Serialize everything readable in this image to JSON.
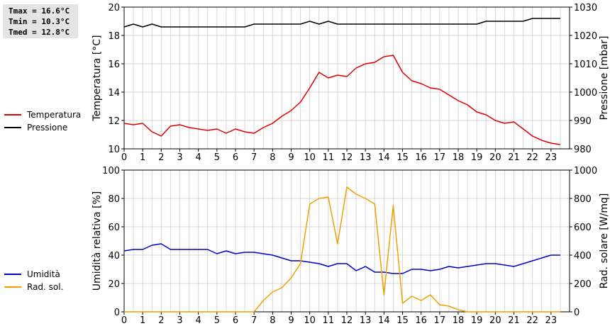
{
  "stats": {
    "tmax": "Tmax = 16.6°C",
    "tmin": "Tmin = 10.3°C",
    "tmed": "Tmed = 12.8°C"
  },
  "chart_data": [
    {
      "type": "line",
      "ylabel": "Temperatura [°C]",
      "y2label": "Pressione [mbar]",
      "xlim": [
        0,
        24
      ],
      "xticks": [
        0,
        1,
        2,
        3,
        4,
        5,
        6,
        7,
        8,
        9,
        10,
        11,
        12,
        13,
        14,
        15,
        16,
        17,
        18,
        19,
        20,
        21,
        22,
        23
      ],
      "ylim": [
        10,
        20
      ],
      "yticks": [
        10,
        12,
        14,
        16,
        18,
        20
      ],
      "y2lim": [
        980,
        1030
      ],
      "y2ticks": [
        980,
        990,
        1000,
        1010,
        1020,
        1030
      ],
      "grid": true,
      "legend_position": "left",
      "series": [
        {
          "name": "Temperatura",
          "color": "#dd0000",
          "axis": "left",
          "x": [
            0,
            0.5,
            1,
            1.5,
            2,
            2.5,
            3,
            3.5,
            4,
            4.5,
            5,
            5.5,
            6,
            6.5,
            7,
            7.5,
            8,
            8.5,
            9,
            9.5,
            10,
            10.5,
            11,
            11.5,
            12,
            12.5,
            13,
            13.5,
            14,
            14.5,
            15,
            15.5,
            16,
            16.5,
            17,
            17.5,
            18,
            18.5,
            19,
            19.5,
            20,
            20.5,
            21,
            21.5,
            22,
            22.5,
            23,
            23.5
          ],
          "values": [
            11.8,
            11.7,
            11.8,
            11.2,
            10.9,
            11.6,
            11.7,
            11.5,
            11.4,
            11.3,
            11.4,
            11.1,
            11.4,
            11.2,
            11.1,
            11.5,
            11.8,
            12.3,
            12.7,
            13.3,
            14.3,
            15.4,
            15.0,
            15.2,
            15.1,
            15.7,
            16.0,
            16.1,
            16.5,
            16.6,
            15.4,
            14.8,
            14.6,
            14.3,
            14.2,
            13.8,
            13.4,
            13.1,
            12.6,
            12.4,
            12.0,
            11.8,
            11.9,
            11.4,
            10.9,
            10.6,
            10.4,
            10.3
          ]
        },
        {
          "name": "Pressione",
          "color": "#000000",
          "axis": "right",
          "x": [
            0,
            0.5,
            1,
            1.5,
            2,
            2.5,
            3,
            3.5,
            4,
            4.5,
            5,
            5.5,
            6,
            6.5,
            7,
            7.5,
            8,
            8.5,
            9,
            9.5,
            10,
            10.5,
            11,
            11.5,
            12,
            12.5,
            13,
            13.5,
            14,
            14.5,
            15,
            15.5,
            16,
            16.5,
            17,
            17.5,
            18,
            18.5,
            19,
            19.5,
            20,
            20.5,
            21,
            21.5,
            22,
            22.5,
            23,
            23.5
          ],
          "values": [
            1023,
            1024,
            1023,
            1024,
            1023,
            1023,
            1023,
            1023,
            1023,
            1023,
            1023,
            1023,
            1023,
            1023,
            1024,
            1024,
            1024,
            1024,
            1024,
            1024,
            1025,
            1024,
            1025,
            1024,
            1024,
            1024,
            1024,
            1024,
            1024,
            1024,
            1024,
            1024,
            1024,
            1024,
            1024,
            1024,
            1024,
            1024,
            1024,
            1025,
            1025,
            1025,
            1025,
            1025,
            1026,
            1026,
            1026,
            1026
          ]
        }
      ]
    },
    {
      "type": "line",
      "ylabel": "Umidità relativa [%]",
      "y2label": "Rad. solare [W/mq]",
      "xlim": [
        0,
        24
      ],
      "xticks": [
        0,
        1,
        2,
        3,
        4,
        5,
        6,
        7,
        8,
        9,
        10,
        11,
        12,
        13,
        14,
        15,
        16,
        17,
        18,
        19,
        20,
        21,
        22,
        23
      ],
      "ylim": [
        0,
        100
      ],
      "yticks": [
        0,
        20,
        40,
        60,
        80,
        100
      ],
      "y2lim": [
        0,
        1000
      ],
      "y2ticks": [
        0,
        200,
        400,
        600,
        800,
        1000
      ],
      "grid": true,
      "legend_position": "left",
      "series": [
        {
          "name": "Umidità",
          "color": "#0000cc",
          "axis": "left",
          "x": [
            0,
            0.5,
            1,
            1.5,
            2,
            2.5,
            3,
            3.5,
            4,
            4.5,
            5,
            5.5,
            6,
            6.5,
            7,
            7.5,
            8,
            8.5,
            9,
            9.5,
            10,
            10.5,
            11,
            11.5,
            12,
            12.5,
            13,
            13.5,
            14,
            14.5,
            15,
            15.5,
            16,
            16.5,
            17,
            17.5,
            18,
            18.5,
            19,
            19.5,
            20,
            20.5,
            21,
            21.5,
            22,
            22.5,
            23,
            23.5
          ],
          "values": [
            43,
            44,
            44,
            47,
            48,
            44,
            44,
            44,
            44,
            44,
            41,
            43,
            41,
            42,
            42,
            41,
            40,
            38,
            36,
            36,
            35,
            34,
            32,
            34,
            34,
            29,
            32,
            28,
            28,
            27,
            27,
            30,
            30,
            29,
            30,
            32,
            31,
            32,
            33,
            34,
            34,
            33,
            32,
            34,
            36,
            38,
            40,
            40
          ]
        },
        {
          "name": "Rad. sol.",
          "color": "#f0a000",
          "axis": "right",
          "x": [
            0,
            0.5,
            1,
            1.5,
            2,
            2.5,
            3,
            3.5,
            4,
            4.5,
            5,
            5.5,
            6,
            6.5,
            7,
            7.5,
            8,
            8.5,
            9,
            9.5,
            10,
            10.5,
            11,
            11.5,
            12,
            12.5,
            13,
            13.5,
            14,
            14.5,
            15,
            15.5,
            16,
            16.5,
            17,
            17.5,
            18,
            18.5,
            19,
            19.5,
            20,
            20.5,
            21,
            21.5,
            22,
            22.5,
            23,
            23.5
          ],
          "values": [
            0,
            0,
            0,
            0,
            0,
            0,
            0,
            0,
            0,
            0,
            0,
            0,
            0,
            0,
            0,
            80,
            140,
            170,
            240,
            340,
            760,
            800,
            810,
            480,
            880,
            830,
            800,
            760,
            120,
            750,
            60,
            110,
            80,
            120,
            50,
            40,
            15,
            0,
            0,
            0,
            0,
            0,
            0,
            0,
            0,
            0,
            0,
            0
          ]
        }
      ]
    }
  ]
}
